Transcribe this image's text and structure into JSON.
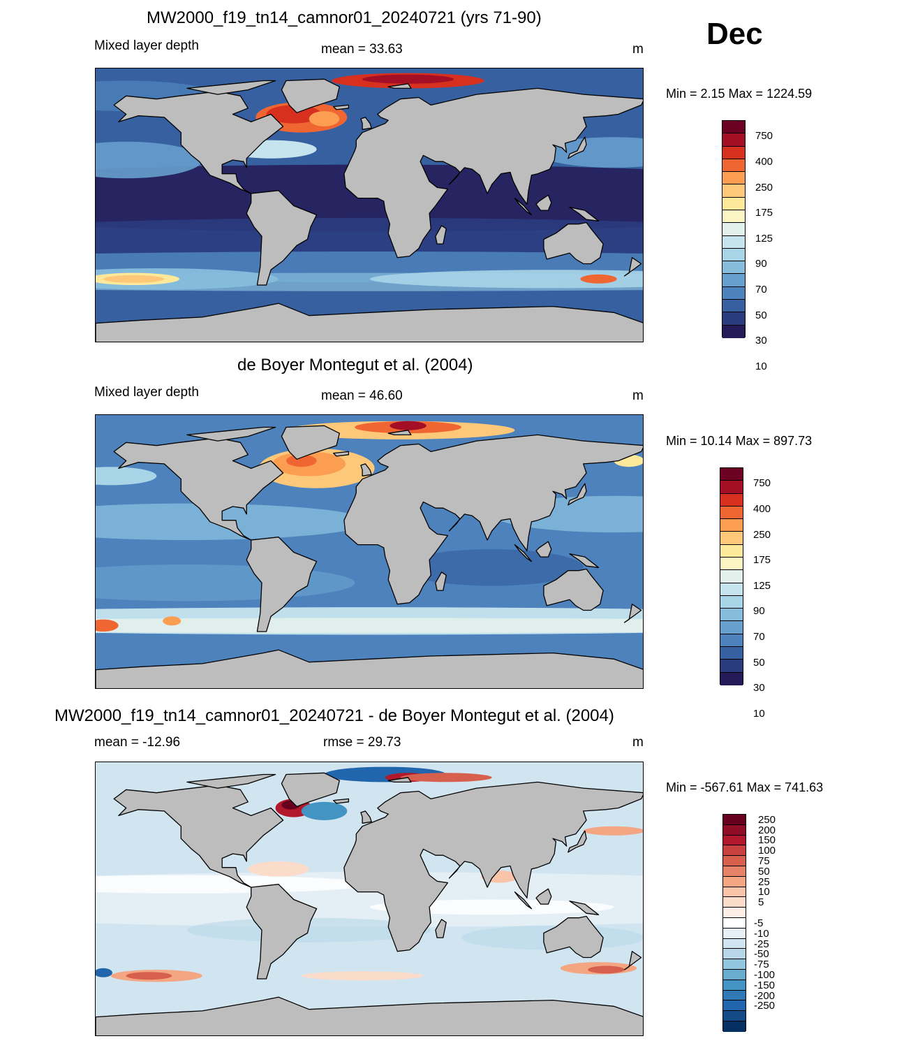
{
  "month": "Dec",
  "panels": [
    {
      "title": "MW2000_f19_tn14_camnor01_20240721 (yrs 71-90)",
      "left_label": "Mixed layer depth",
      "center_label": "mean =  33.63",
      "units": "m",
      "minmax": "Min =   2.15 Max = 1224.59",
      "colorbar": {
        "labels": [
          "750",
          "400",
          "250",
          "175",
          "125",
          "90",
          "70",
          "50",
          "30",
          "10"
        ],
        "colors": [
          "#6b0022",
          "#a50f26",
          "#d7301f",
          "#f06633",
          "#fc9e51",
          "#fdc87a",
          "#fee99a",
          "#fbf6c4",
          "#e3f1ec",
          "#c6e4ee",
          "#a8d4e8",
          "#87bddc",
          "#679fcd",
          "#4d82bc",
          "#36609f",
          "#2b3c7e",
          "#241a57"
        ]
      }
    },
    {
      "title": "de Boyer Montegut et al. (2004)",
      "left_label": "Mixed layer depth",
      "center_label": "mean =  46.60",
      "units": "m",
      "minmax": "Min =  10.14 Max = 897.73",
      "colorbar": {
        "labels": [
          "750",
          "400",
          "250",
          "175",
          "125",
          "90",
          "70",
          "50",
          "30",
          "10"
        ],
        "colors": [
          "#6b0022",
          "#a50f26",
          "#d7301f",
          "#f06633",
          "#fc9e51",
          "#fdc87a",
          "#fee99a",
          "#fbf6c4",
          "#e3f1ec",
          "#c6e4ee",
          "#a8d4e8",
          "#87bddc",
          "#679fcd",
          "#4d82bc",
          "#36609f",
          "#2b3c7e",
          "#241a57"
        ]
      }
    },
    {
      "title": "MW2000_f19_tn14_camnor01_20240721 - de Boyer Montegut et al. (2004)",
      "left_label": "mean = -12.96",
      "center_label": "rmse =  29.73",
      "units": "m",
      "minmax": "Min = -567.61 Max = 741.63",
      "colorbar": {
        "labels": [
          "250",
          "200",
          "150",
          "100",
          "75",
          "50",
          "25",
          "10",
          "5",
          "-5",
          "-10",
          "-25",
          "-50",
          "-75",
          "-100",
          "-150",
          "-200",
          "-250"
        ],
        "colors": [
          "#67001f",
          "#900d27",
          "#b2182b",
          "#c8413e",
          "#d6604d",
          "#e58267",
          "#f4a582",
          "#f9c4a9",
          "#fbdccb",
          "#fdefe5",
          "#ffffff",
          "#e5eff5",
          "#d1e5f0",
          "#b7d7e8",
          "#92c5de",
          "#6aaccf",
          "#4393c3",
          "#3179b5",
          "#2166ac",
          "#134b86",
          "#053061"
        ]
      }
    }
  ]
}
